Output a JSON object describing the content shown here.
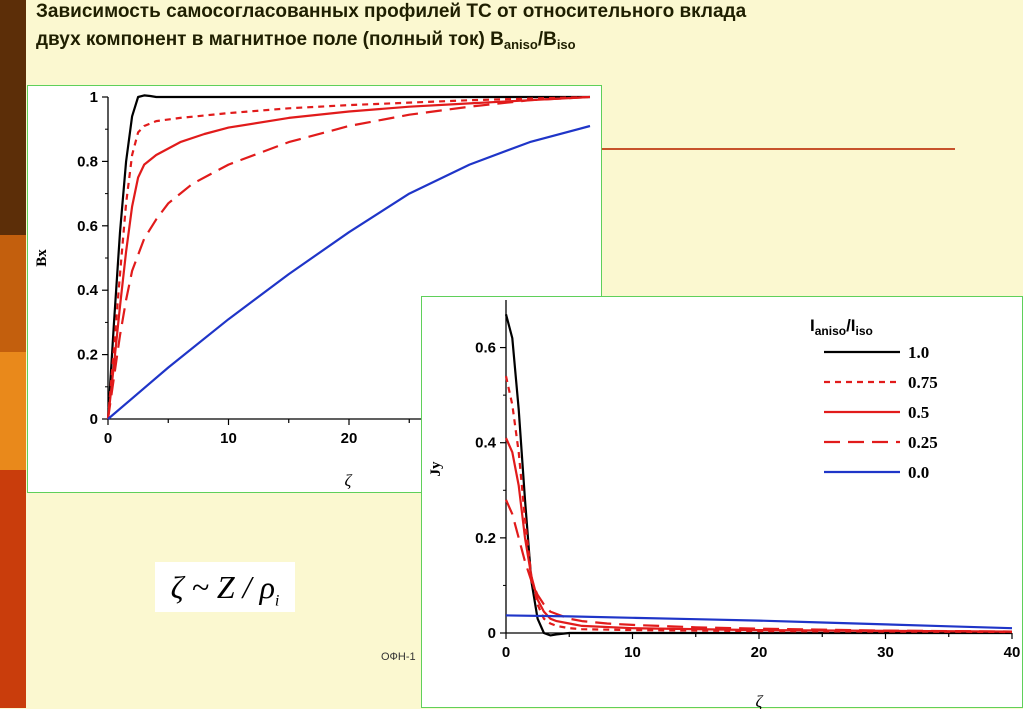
{
  "title": {
    "line1": "Зависимость самосогласованных профилей ТС от относительного вклада",
    "line2_prefix": "двух компонент в магнитное поле (полный ток) B",
    "line2_sub1": "aniso",
    "line2_mid": "/B",
    "line2_sub2": "iso"
  },
  "sidebar": {
    "colors": [
      "#5c2e08",
      "#c35f0d",
      "#e9891b",
      "#c93d0c"
    ]
  },
  "formula": {
    "lhs": "ζ ~ Z / ρ",
    "sub": "i"
  },
  "footer": {
    "text": "ОФН-1"
  },
  "colors": {
    "black": "#000000",
    "red": "#e11b1b",
    "blue": "#1f35c8",
    "panel_border": "#5fd05a",
    "deco_line": "#c7532b"
  },
  "chart_data": [
    {
      "type": "line",
      "ylabel": "Bx",
      "xlabel": "ζ",
      "xlim": [
        0,
        40
      ],
      "ylim": [
        0,
        1
      ],
      "xticks": [
        0,
        10,
        20
      ],
      "xtick_labels": [
        "0",
        "10",
        "20"
      ],
      "yticks": [
        0,
        0.2,
        0.4,
        0.6,
        0.8,
        1
      ],
      "ytick_labels": [
        "0",
        "0.2",
        "0.4",
        "0.6",
        "0.8",
        "1"
      ],
      "series": [
        {
          "style": "solid",
          "color": "#000000",
          "x": [
            0,
            0.5,
            1,
            1.5,
            2,
            2.5,
            3,
            3.5,
            4,
            6,
            10,
            20,
            30,
            40
          ],
          "y": [
            0,
            0.3,
            0.58,
            0.8,
            0.94,
            1.0,
            1.005,
            1.003,
            1.0,
            1.0,
            1.0,
            1.0,
            1.0,
            1.0
          ]
        },
        {
          "style": "dotted",
          "color": "#e11b1b",
          "x": [
            0,
            0.5,
            1,
            1.5,
            2,
            2.5,
            3,
            4,
            6,
            10,
            15,
            20,
            30,
            40
          ],
          "y": [
            0,
            0.22,
            0.45,
            0.67,
            0.82,
            0.89,
            0.91,
            0.925,
            0.935,
            0.95,
            0.965,
            0.975,
            0.99,
            1.0
          ]
        },
        {
          "style": "solid",
          "color": "#e11b1b",
          "x": [
            0,
            0.5,
            1,
            1.5,
            2,
            2.5,
            3,
            4,
            6,
            8,
            10,
            15,
            20,
            25,
            30,
            35,
            40
          ],
          "y": [
            0,
            0.17,
            0.35,
            0.52,
            0.66,
            0.75,
            0.79,
            0.82,
            0.86,
            0.885,
            0.905,
            0.935,
            0.955,
            0.97,
            0.98,
            0.99,
            1.0
          ]
        },
        {
          "style": "dashed",
          "color": "#e11b1b",
          "x": [
            0,
            0.5,
            1,
            1.5,
            2,
            3,
            4,
            5,
            7,
            10,
            15,
            20,
            25,
            30,
            35,
            40
          ],
          "y": [
            0,
            0.13,
            0.26,
            0.37,
            0.46,
            0.56,
            0.62,
            0.67,
            0.73,
            0.79,
            0.86,
            0.91,
            0.945,
            0.97,
            0.99,
            1.0
          ]
        },
        {
          "style": "solid",
          "color": "#1f35c8",
          "x": [
            0,
            5,
            10,
            15,
            20,
            25,
            30,
            35,
            40
          ],
          "y": [
            0,
            0.16,
            0.31,
            0.45,
            0.58,
            0.7,
            0.79,
            0.86,
            0.91
          ]
        }
      ]
    },
    {
      "type": "line",
      "ylabel": "Jy",
      "xlabel": "ζ",
      "legend_title": "I",
      "legend_title_sub": "aniso",
      "legend_title_mid": "/I",
      "legend_title_sub2": "iso",
      "xlim": [
        0,
        40
      ],
      "ylim": [
        0,
        0.7
      ],
      "xticks": [
        0,
        10,
        20,
        30,
        40
      ],
      "xtick_labels": [
        "0",
        "10",
        "20",
        "30",
        "40"
      ],
      "yticks": [
        0,
        0.2,
        0.4,
        0.6
      ],
      "ytick_labels": [
        "0",
        "0.2",
        "0.4",
        "0.6"
      ],
      "series": [
        {
          "name": "1.0",
          "style": "solid",
          "color": "#000000",
          "x": [
            0,
            0.5,
            1,
            1.5,
            2,
            2.5,
            3,
            3.5,
            4,
            5,
            6,
            10,
            20,
            40
          ],
          "y": [
            0.67,
            0.62,
            0.47,
            0.28,
            0.11,
            0.03,
            0.0,
            -0.005,
            -0.003,
            0.0,
            0.0,
            0.0,
            0.0,
            0.0
          ]
        },
        {
          "name": "0.75",
          "style": "dotted",
          "color": "#e11b1b",
          "x": [
            0,
            0.5,
            1,
            1.5,
            2,
            2.5,
            3,
            3.5,
            4,
            5,
            6,
            10,
            20,
            40
          ],
          "y": [
            0.54,
            0.48,
            0.38,
            0.24,
            0.12,
            0.06,
            0.03,
            0.02,
            0.015,
            0.01,
            0.008,
            0.006,
            0.004,
            0.002
          ]
        },
        {
          "name": "0.5",
          "style": "solid",
          "color": "#e11b1b",
          "x": [
            0,
            0.5,
            1,
            1.5,
            2,
            2.5,
            3,
            3.5,
            4,
            5,
            6,
            10,
            20,
            40
          ],
          "y": [
            0.41,
            0.38,
            0.31,
            0.2,
            0.12,
            0.07,
            0.045,
            0.03,
            0.025,
            0.02,
            0.015,
            0.01,
            0.006,
            0.003
          ]
        },
        {
          "name": "0.25",
          "style": "dashed",
          "color": "#e11b1b",
          "x": [
            0,
            0.5,
            1,
            1.5,
            2,
            2.5,
            3,
            3.5,
            4,
            5,
            6,
            8,
            10,
            15,
            20,
            30,
            40
          ],
          "y": [
            0.28,
            0.25,
            0.2,
            0.15,
            0.11,
            0.08,
            0.06,
            0.045,
            0.04,
            0.03,
            0.025,
            0.02,
            0.017,
            0.012,
            0.009,
            0.005,
            0.003
          ]
        },
        {
          "name": "0.0",
          "style": "solid",
          "color": "#1f35c8",
          "x": [
            0,
            5,
            10,
            15,
            20,
            25,
            30,
            35,
            40
          ],
          "y": [
            0.037,
            0.035,
            0.032,
            0.029,
            0.026,
            0.022,
            0.018,
            0.014,
            0.01
          ]
        }
      ]
    }
  ]
}
